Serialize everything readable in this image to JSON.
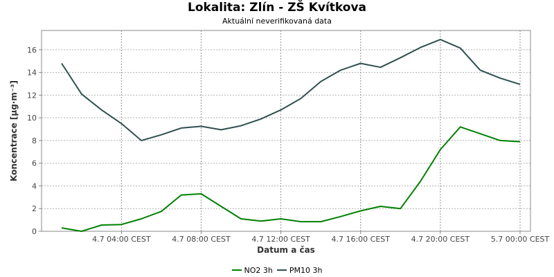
{
  "chart_data": {
    "type": "line",
    "title": "Lokalita: Zlín - ZŠ Kvítkova",
    "subtitle": "Aktuální neverifikovaná data",
    "xlabel": "Datum a čas",
    "ylabel": "Koncentrace [µg·m⁻³]",
    "ylim": [
      0,
      17.7
    ],
    "yticks": [
      0,
      2,
      4,
      6,
      8,
      10,
      12,
      14,
      16
    ],
    "x": [
      "4.7 01:00",
      "4.7 02:00",
      "4.7 03:00",
      "4.7 04:00",
      "4.7 05:00",
      "4.7 06:00",
      "4.7 07:00",
      "4.7 08:00",
      "4.7 09:00",
      "4.7 10:00",
      "4.7 11:00",
      "4.7 12:00",
      "4.7 13:00",
      "4.7 14:00",
      "4.7 15:00",
      "4.7 16:00",
      "4.7 17:00",
      "4.7 18:00",
      "4.7 19:00",
      "4.7 20:00",
      "4.7 21:00",
      "4.7 22:00",
      "4.7 23:00",
      "5.7 00:00"
    ],
    "xticks": [
      {
        "index": 3,
        "label": "4.7 04:00 CEST"
      },
      {
        "index": 7,
        "label": "4.7 08:00 CEST"
      },
      {
        "index": 11,
        "label": "4.7 12:00 CEST"
      },
      {
        "index": 15,
        "label": "4.7 16:00 CEST"
      },
      {
        "index": 19,
        "label": "4.7 20:00 CEST"
      },
      {
        "index": 23,
        "label": "5.7 00:00 CEST"
      }
    ],
    "grid": true,
    "legend_position": "bottom",
    "series": [
      {
        "name": "NO2 3h",
        "color": "#008000",
        "values": [
          0.3,
          0.0,
          0.55,
          0.6,
          1.1,
          1.75,
          3.2,
          3.3,
          2.2,
          1.1,
          0.9,
          1.1,
          0.85,
          0.85,
          1.3,
          1.8,
          2.2,
          2.0,
          4.4,
          7.2,
          9.2,
          8.6,
          8.0,
          7.9
        ]
      },
      {
        "name": "PM10 3h",
        "color": "#2f4f4f",
        "values": [
          14.8,
          12.1,
          10.7,
          9.5,
          8.0,
          8.5,
          9.1,
          9.25,
          8.95,
          9.3,
          9.9,
          10.7,
          11.7,
          13.2,
          14.2,
          14.8,
          14.45,
          15.3,
          16.2,
          16.9,
          16.15,
          14.2,
          13.5,
          12.95
        ]
      }
    ]
  }
}
